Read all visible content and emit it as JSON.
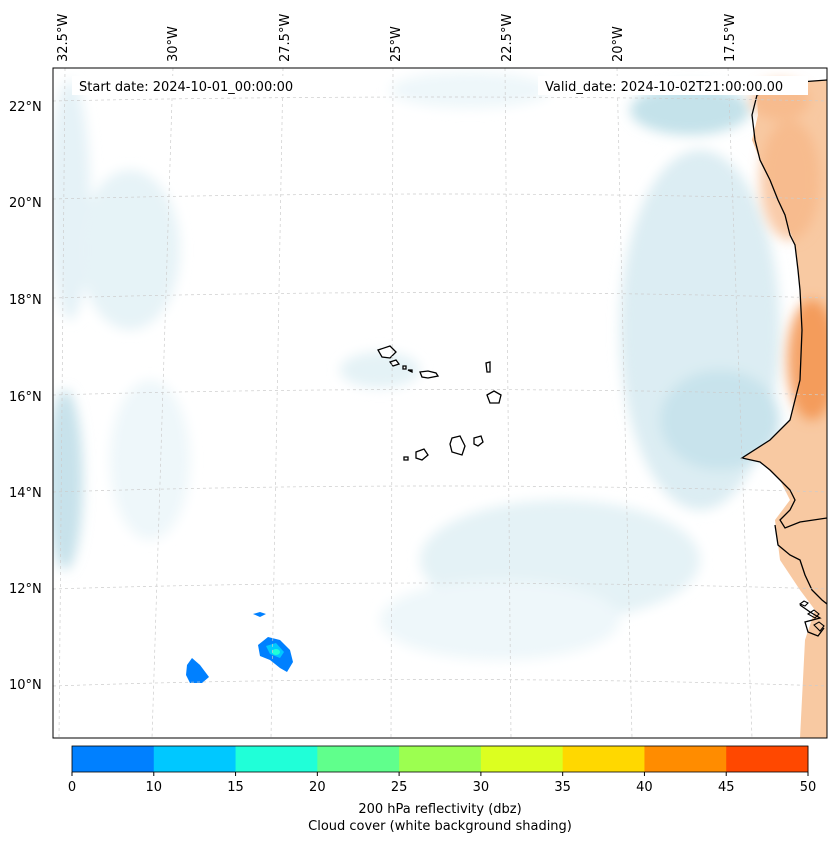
{
  "header": {
    "start_date": "Start date: 2024-10-01_00:00:00",
    "valid_date": "Valid_date: 2024-10-02T21:00:00.00"
  },
  "map": {
    "lon_labels": [
      "32.5°W",
      "30°W",
      "27.5°W",
      "25°W",
      "22.5°W",
      "20°W",
      "17.5°W"
    ],
    "lat_labels": [
      "22°N",
      "20°N",
      "18°N",
      "16°N",
      "14°N",
      "12°N",
      "10°N"
    ],
    "features": [
      "cabo-verde-islands",
      "west-africa-coastline",
      "cloud-cover-shading",
      "reflectivity-cells"
    ]
  },
  "colorbar": {
    "ticks": [
      "0",
      "10",
      "15",
      "20",
      "25",
      "30",
      "35",
      "40",
      "45",
      "50"
    ],
    "colors": [
      "#0080ff",
      "#00c8ff",
      "#20ffd8",
      "#60ff8c",
      "#9cff50",
      "#dcff20",
      "#ffd800",
      "#ff8c00",
      "#ff4800"
    ],
    "label_line1": "200 hPa reflectivity (dbz)",
    "label_line2": "Cloud cover (white background shading)"
  },
  "colors": {
    "cloud": "#d4ebf2",
    "land": "#f5a86a",
    "coast": "#000000",
    "grid": "#c8c8c8"
  }
}
